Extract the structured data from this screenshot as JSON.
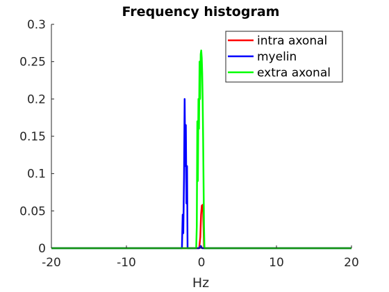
{
  "chart_data": {
    "type": "line",
    "title": "Frequency histogram",
    "xlabel": "Hz",
    "ylabel": "",
    "xlim": [
      -20,
      20
    ],
    "ylim": [
      0,
      0.3
    ],
    "xticks": [
      -20,
      -10,
      0,
      10,
      20
    ],
    "xtick_labels": [
      "-20",
      "-10",
      "0",
      "10",
      "20"
    ],
    "yticks": [
      0,
      0.05,
      0.1,
      0.15,
      0.2,
      0.25,
      0.3
    ],
    "ytick_labels": [
      "0",
      "0.05",
      "0.1",
      "0.15",
      "0.2",
      "0.25",
      "0.3"
    ],
    "grid": false,
    "legend_position": "top-right",
    "series": [
      {
        "name": "intra axonal",
        "color": "#ff0000",
        "points": [
          [
            -20,
            0
          ],
          [
            -0.3,
            0
          ],
          [
            -0.15,
            0.015
          ],
          [
            -0.05,
            0.045
          ],
          [
            0.05,
            0.057
          ],
          [
            0.15,
            0.058
          ],
          [
            0.22,
            0.05
          ],
          [
            0.3,
            0.02
          ],
          [
            0.35,
            0
          ],
          [
            20,
            0
          ]
        ]
      },
      {
        "name": "myelin",
        "color": "#0000ff",
        "points": [
          [
            -20,
            0
          ],
          [
            -2.6,
            0
          ],
          [
            -2.5,
            0.045
          ],
          [
            -2.42,
            0.02
          ],
          [
            -2.32,
            0.095
          ],
          [
            -2.24,
            0.2
          ],
          [
            -2.16,
            0.11
          ],
          [
            -2.08,
            0.165
          ],
          [
            -2.0,
            0.06
          ],
          [
            -1.92,
            0.11
          ],
          [
            -1.85,
            0
          ],
          [
            -0.3,
            0
          ],
          [
            -0.1,
            0.003
          ],
          [
            0.1,
            0
          ],
          [
            20,
            0
          ]
        ]
      },
      {
        "name": "extra axonal",
        "color": "#00ff00",
        "points": [
          [
            -20,
            0
          ],
          [
            -0.7,
            0
          ],
          [
            -0.62,
            0.03
          ],
          [
            -0.55,
            0.17
          ],
          [
            -0.48,
            0.09
          ],
          [
            -0.4,
            0.2
          ],
          [
            -0.33,
            0.16
          ],
          [
            -0.25,
            0.25
          ],
          [
            -0.18,
            0.2
          ],
          [
            -0.1,
            0.26
          ],
          [
            -0.03,
            0.265
          ],
          [
            0.04,
            0.255
          ],
          [
            0.1,
            0.235
          ],
          [
            0.16,
            0.2
          ],
          [
            0.22,
            0.15
          ],
          [
            0.28,
            0.09
          ],
          [
            0.34,
            0.03
          ],
          [
            0.4,
            0
          ],
          [
            20,
            0
          ]
        ]
      }
    ]
  }
}
